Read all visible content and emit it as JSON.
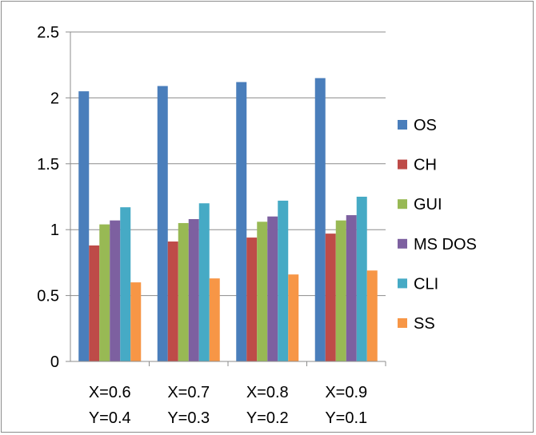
{
  "chart_data": {
    "type": "bar",
    "categories": [
      [
        "X=0.6",
        "Y=0.4"
      ],
      [
        "X=0.7",
        "Y=0.3"
      ],
      [
        "X=0.8",
        "Y=0.2"
      ],
      [
        "X=0.9",
        "Y=0.1"
      ]
    ],
    "series": [
      {
        "name": "OS",
        "color": "#4a7ebb",
        "values": [
          2.05,
          2.09,
          2.12,
          2.15
        ]
      },
      {
        "name": "CH",
        "color": "#be4b48",
        "values": [
          0.88,
          0.91,
          0.94,
          0.97
        ]
      },
      {
        "name": "GUI",
        "color": "#98b954",
        "values": [
          1.04,
          1.05,
          1.06,
          1.07
        ]
      },
      {
        "name": "MS DOS",
        "color": "#7d60a0",
        "values": [
          1.07,
          1.08,
          1.1,
          1.11
        ]
      },
      {
        "name": "CLI",
        "color": "#46aac5",
        "values": [
          1.17,
          1.2,
          1.22,
          1.25
        ]
      },
      {
        "name": "SS",
        "color": "#f79646",
        "values": [
          0.6,
          0.63,
          0.66,
          0.69
        ]
      }
    ],
    "yticks": [
      "0",
      "0.5",
      "1",
      "1.5",
      "2",
      "2.5"
    ],
    "ylim": [
      0,
      2.5
    ],
    "grid": true,
    "legend": "right",
    "title": "",
    "xlabel": "",
    "ylabel": ""
  }
}
